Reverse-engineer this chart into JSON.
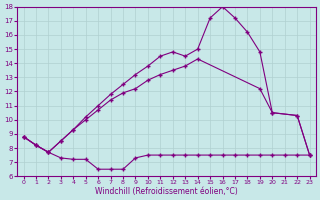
{
  "xlabel": "Windchill (Refroidissement éolien,°C)",
  "background_color": "#c8e8e8",
  "grid_color": "#b0d0d0",
  "line_color": "#800080",
  "xlim": [
    0,
    23
  ],
  "ylim": [
    6,
    18
  ],
  "xticks": [
    0,
    1,
    2,
    3,
    4,
    5,
    6,
    7,
    8,
    9,
    10,
    11,
    12,
    13,
    14,
    15,
    16,
    17,
    18,
    19,
    20,
    21,
    22,
    23
  ],
  "yticks": [
    6,
    7,
    8,
    9,
    10,
    11,
    12,
    13,
    14,
    15,
    16,
    17,
    18
  ],
  "line1_x": [
    0,
    1,
    2,
    3,
    4,
    5,
    6,
    7,
    8,
    9,
    10,
    11,
    12,
    13,
    14,
    15,
    16,
    17,
    18,
    19,
    20,
    21,
    22,
    23
  ],
  "line1_y": [
    8.8,
    8.2,
    7.7,
    7.3,
    7.2,
    7.2,
    6.5,
    6.5,
    6.5,
    7.3,
    7.5,
    7.5,
    7.5,
    7.5,
    7.5,
    7.5,
    7.5,
    7.5,
    7.5,
    7.5,
    7.5,
    7.5,
    7.5,
    7.5
  ],
  "line2_x": [
    0,
    1,
    2,
    3,
    4,
    5,
    6,
    7,
    8,
    9,
    10,
    11,
    12,
    13,
    14,
    19,
    20,
    22,
    23
  ],
  "line2_y": [
    8.8,
    8.2,
    7.7,
    8.5,
    9.3,
    10.0,
    10.7,
    11.4,
    11.9,
    12.2,
    12.8,
    13.2,
    13.5,
    13.8,
    14.3,
    12.2,
    10.5,
    10.3,
    7.5
  ],
  "line3_x": [
    0,
    1,
    2,
    3,
    4,
    5,
    6,
    7,
    8,
    9,
    10,
    11,
    12,
    13,
    14,
    15,
    16,
    17,
    18,
    19,
    20,
    22,
    23
  ],
  "line3_y": [
    8.8,
    8.2,
    7.7,
    8.5,
    9.3,
    10.2,
    11.0,
    11.8,
    12.5,
    13.2,
    13.8,
    14.5,
    14.8,
    14.5,
    15.0,
    17.2,
    18.0,
    17.2,
    16.2,
    14.8,
    10.5,
    10.3,
    7.5
  ]
}
